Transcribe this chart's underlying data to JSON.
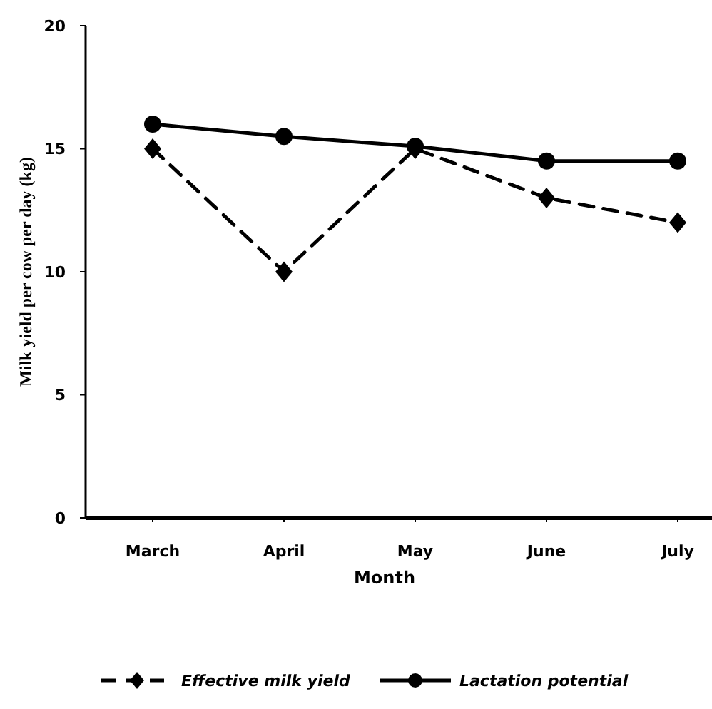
{
  "chart_data": {
    "type": "line",
    "xlabel": "Month",
    "ylabel": "Milk yield per cow per day (kg)",
    "categories": [
      "March",
      "April",
      "May",
      "June",
      "July"
    ],
    "ylim": [
      0,
      20
    ],
    "yticks": [
      0,
      5,
      10,
      15,
      20
    ],
    "grid": false,
    "legend": "bottom",
    "series": [
      {
        "name": "Effective milk yield",
        "color": "#000000",
        "values": [
          15,
          10,
          15,
          13,
          12
        ],
        "marker": "diamond",
        "line_style": "dashed"
      },
      {
        "name": "Lactation potential",
        "color": "#000000",
        "values": [
          16,
          15.5,
          15.1,
          14.5,
          14.5
        ],
        "marker": "circle",
        "line_style": "solid"
      }
    ]
  }
}
